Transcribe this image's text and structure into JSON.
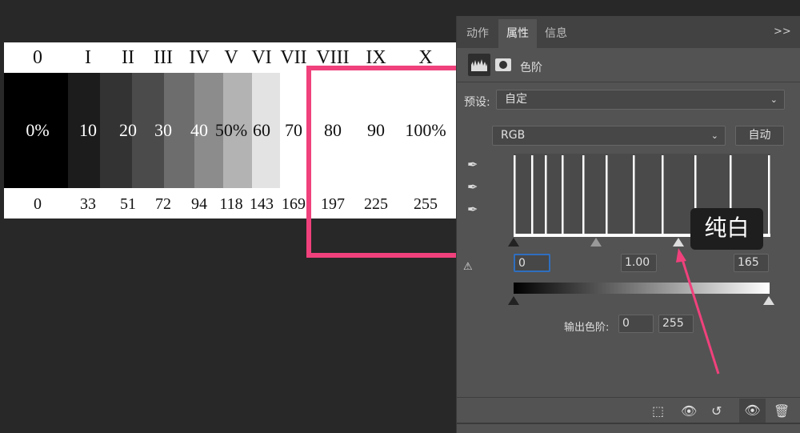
{
  "chart": {
    "roman": [
      "0",
      "I",
      "II",
      "III",
      "IV",
      "V",
      "VI",
      "VII",
      "VIII",
      "IX",
      "X"
    ],
    "percents": [
      "0%",
      "10",
      "20",
      "30",
      "40",
      "50%",
      "60",
      "70",
      "80",
      "90",
      "100%"
    ],
    "values": [
      "0",
      "33",
      "51",
      "72",
      "94",
      "118",
      "143",
      "169",
      "197",
      "225",
      "255"
    ]
  },
  "colors": {
    "highlight": "#f0417c",
    "panel": "#535353",
    "input_focus": "#2f6fc0"
  },
  "panel": {
    "tabs": [
      "动作",
      "属性",
      "信息"
    ],
    "active_tab": "属性",
    "collapse": ">>",
    "adjustment_title": "色阶",
    "preset_label": "预设:",
    "preset_value": "自定",
    "channel_value": "RGB",
    "auto_button": "自动",
    "input_black": "0",
    "input_gamma": "1.00",
    "input_white": "165",
    "output_label": "输出色阶:",
    "output_black": "0",
    "output_white": "255",
    "tooltip": "纯白",
    "icons": [
      "levels-icon",
      "mask-icon",
      "eyedropper-black-icon",
      "eyedropper-gray-icon",
      "eyedropper-white-icon",
      "clipping-warning-icon",
      "clip-to-layer-icon",
      "view-previous-icon",
      "reset-icon",
      "visibility-icon",
      "delete-icon"
    ]
  }
}
